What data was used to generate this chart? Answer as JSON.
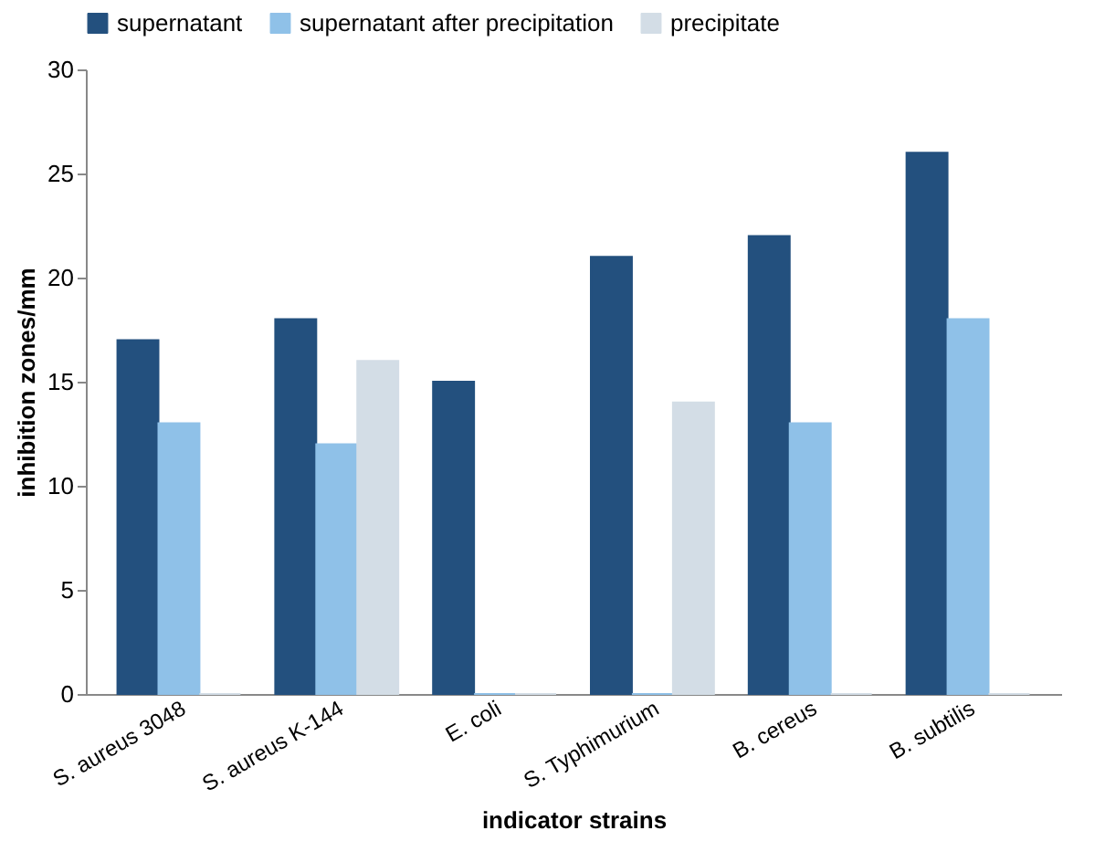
{
  "chart_data": {
    "type": "bar",
    "xlabel": "indicator strains",
    "ylabel": "inhibition zones/mm",
    "categories": [
      "S. aureus 3048",
      "S. aureus K-144",
      "E. coli",
      "S. Typhimurium",
      "B. cereus",
      "B. subtilis"
    ],
    "series": [
      {
        "name": "supernatant",
        "color": "#23507e",
        "values": [
          17,
          18,
          15,
          21,
          22,
          26
        ]
      },
      {
        "name": "supernatant after precipitation",
        "color": "#8fc1e8",
        "values": [
          13,
          12,
          0,
          0,
          13,
          18
        ]
      },
      {
        "name": "precipitate",
        "color": "#d3dde6",
        "values": [
          0,
          16,
          0,
          14,
          0,
          0
        ]
      }
    ],
    "ylim": [
      0,
      30
    ],
    "yticks": [
      0,
      5,
      10,
      15,
      20,
      25,
      30
    ],
    "grid": false,
    "legend": "top"
  }
}
